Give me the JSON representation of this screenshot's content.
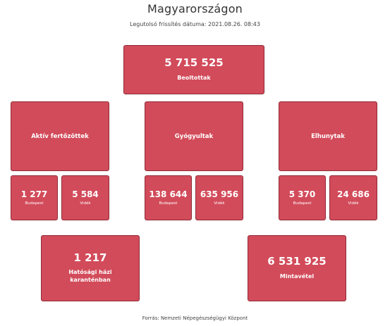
{
  "header": {
    "title": "Magyarországon",
    "updated": "Legutolsó frissítés dátuma: 2021.08.26. 08:43"
  },
  "vaccinated": {
    "value": "5 715 525",
    "label": "Beoltottak"
  },
  "active": {
    "label": "Aktív fertőzöttek",
    "budapest": {
      "value": "1 277",
      "label": "Budapest"
    },
    "countryside": {
      "value": "5 584",
      "label": "Vidék"
    }
  },
  "recovered": {
    "label": "Gyógyultak",
    "budapest": {
      "value": "138 644",
      "label": "Budapest"
    },
    "countryside": {
      "value": "635 956",
      "label": "Vidék"
    }
  },
  "deceased": {
    "label": "Elhunytak",
    "budapest": {
      "value": "5 370",
      "label": "Budapest"
    },
    "countryside": {
      "value": "24 686",
      "label": "Vidék"
    }
  },
  "quarantine": {
    "value": "1 217",
    "label": "Hatósági házi karanténban"
  },
  "tests": {
    "value": "6 531 925",
    "label": "Mintavétel"
  },
  "footer": {
    "source": "Forrás: Nemzeti Népegészségügyi Központ"
  },
  "colors": {
    "card": "#d24b5a",
    "card_border": "#8f2a36"
  }
}
